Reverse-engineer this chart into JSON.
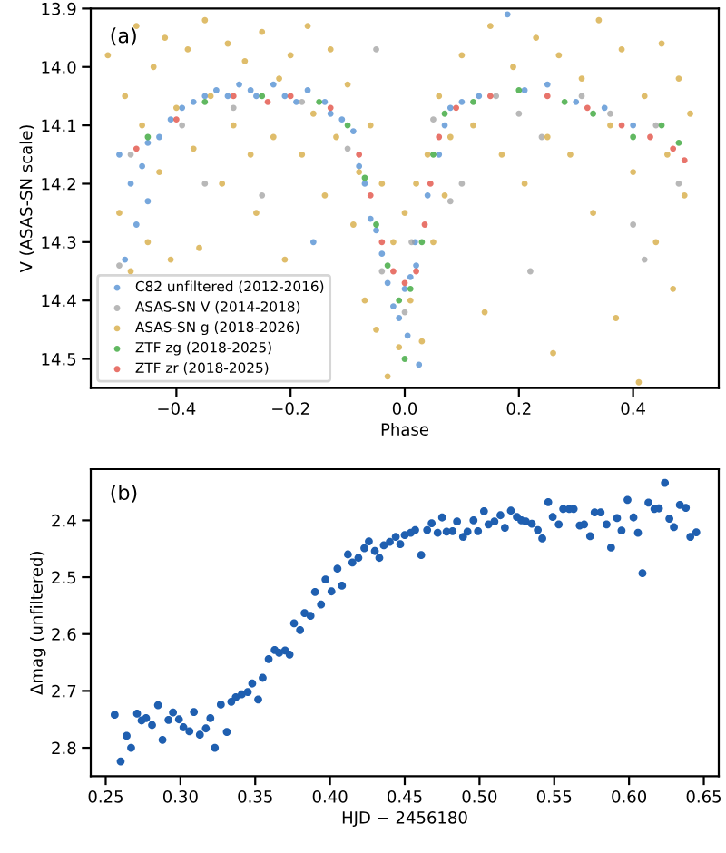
{
  "chart_data": [
    {
      "type": "scatter",
      "xlabel": "Phase",
      "ylabel": "V (ASAS-SN scale)",
      "annotations": [
        "(a)"
      ],
      "xlim": [
        -0.55,
        0.55
      ],
      "ylim": [
        14.55,
        13.9
      ],
      "xticks": [
        {
          "value": -0.4,
          "label": "−0.4"
        },
        {
          "value": -0.2,
          "label": "−0.2"
        },
        {
          "value": 0.0,
          "label": "0.0"
        },
        0.2,
        0.4
      ],
      "yticks": [
        13.9,
        {
          "value": 14.0,
          "label": "14.0"
        },
        14.1,
        14.2,
        14.3,
        14.4,
        14.5
      ],
      "grid": false,
      "legend": "bottom left",
      "marker": "circle",
      "series": [
        {
          "name": "C82 unfiltered (2012-2016)",
          "color": "#4a8ad0",
          "x": [
            -0.5,
            -0.49,
            -0.48,
            -0.47,
            -0.46,
            -0.45,
            -0.43,
            -0.41,
            -0.39,
            -0.37,
            -0.35,
            -0.33,
            -0.31,
            -0.29,
            -0.27,
            -0.26,
            -0.23,
            -0.21,
            -0.19,
            -0.17,
            -0.14,
            -0.13,
            -0.11,
            -0.09,
            -0.08,
            -0.07,
            -0.06,
            -0.05,
            -0.04,
            -0.03,
            -0.02,
            -0.01,
            0.0,
            0.005,
            0.01,
            0.02,
            0.025,
            0.018,
            0.04,
            0.06,
            0.07,
            0.08,
            0.1,
            0.13,
            -0.16,
            0.21,
            0.25,
            0.3,
            0.35,
            0.4,
            0.18,
            -0.45
          ],
          "values": [
            14.15,
            14.33,
            14.2,
            14.27,
            14.17,
            14.13,
            14.12,
            14.09,
            14.07,
            14.06,
            14.05,
            14.04,
            14.05,
            14.03,
            14.04,
            14.05,
            14.03,
            14.05,
            14.06,
            14.04,
            14.06,
            14.08,
            14.09,
            14.11,
            14.17,
            14.2,
            14.26,
            14.28,
            14.32,
            14.37,
            14.41,
            14.43,
            14.38,
            14.46,
            14.36,
            14.34,
            14.51,
            14.3,
            14.22,
            14.15,
            14.1,
            14.07,
            14.06,
            14.05,
            14.3,
            14.04,
            14.03,
            14.06,
            14.07,
            14.1,
            13.91,
            14.23
          ]
        },
        {
          "name": "ASAS-SN V (2014-2018)",
          "color": "#a0a0a0",
          "x": [
            -0.5,
            -0.48,
            -0.39,
            -0.3,
            -0.25,
            -0.18,
            -0.1,
            -0.05,
            -0.04,
            0.0,
            0.012,
            0.05,
            0.1,
            0.16,
            0.2,
            0.24,
            0.31,
            0.36,
            0.4,
            0.42,
            0.44,
            0.48,
            0.22,
            -0.35,
            0.08
          ],
          "values": [
            14.34,
            14.15,
            14.1,
            14.07,
            14.22,
            14.06,
            14.14,
            13.97,
            14.35,
            14.42,
            14.3,
            14.09,
            14.2,
            14.05,
            14.08,
            14.12,
            14.05,
            14.08,
            14.27,
            14.33,
            14.1,
            14.2,
            14.35,
            14.2,
            14.23
          ]
        },
        {
          "name": "ASAS-SN g (2018-2026)",
          "color": "#d4a73a",
          "x": [
            -0.52,
            -0.5,
            -0.49,
            -0.48,
            -0.47,
            -0.46,
            -0.45,
            -0.44,
            -0.43,
            -0.42,
            -0.41,
            -0.4,
            -0.38,
            -0.37,
            -0.36,
            -0.35,
            -0.34,
            -0.32,
            -0.31,
            -0.3,
            -0.28,
            -0.27,
            -0.26,
            -0.25,
            -0.23,
            -0.22,
            -0.21,
            -0.2,
            -0.18,
            -0.17,
            -0.16,
            -0.14,
            -0.13,
            -0.12,
            -0.1,
            -0.09,
            -0.08,
            -0.07,
            -0.06,
            -0.05,
            -0.04,
            -0.03,
            -0.02,
            -0.01,
            0.0,
            0.01,
            0.02,
            0.03,
            0.04,
            0.05,
            0.06,
            0.07,
            0.08,
            0.1,
            0.12,
            0.14,
            0.15,
            0.17,
            0.19,
            0.21,
            0.23,
            0.25,
            0.26,
            0.27,
            0.29,
            0.31,
            0.33,
            0.34,
            0.36,
            0.37,
            0.38,
            0.4,
            0.41,
            0.42,
            0.44,
            0.45,
            0.46,
            0.47,
            0.48,
            0.49,
            0.5
          ],
          "values": [
            13.98,
            14.25,
            14.05,
            14.35,
            13.93,
            14.1,
            14.3,
            14.0,
            14.18,
            13.95,
            14.33,
            14.07,
            13.97,
            14.14,
            14.31,
            13.92,
            14.05,
            14.2,
            13.96,
            14.1,
            13.99,
            14.15,
            14.25,
            13.94,
            14.12,
            14.02,
            14.33,
            13.98,
            14.15,
            13.93,
            14.08,
            14.22,
            13.97,
            14.12,
            14.03,
            14.27,
            14.18,
            14.4,
            14.1,
            14.45,
            14.2,
            14.53,
            14.3,
            14.48,
            14.25,
            14.4,
            14.2,
            14.47,
            14.15,
            14.3,
            14.05,
            14.22,
            14.12,
            13.98,
            14.1,
            14.42,
            13.93,
            14.15,
            14.0,
            14.2,
            13.95,
            14.12,
            14.49,
            13.98,
            14.15,
            14.02,
            14.25,
            13.92,
            14.1,
            14.43,
            13.97,
            14.18,
            14.54,
            14.05,
            14.3,
            13.96,
            14.15,
            14.38,
            14.02,
            14.22,
            14.08
          ]
        },
        {
          "name": "ZTF zg (2018-2025)",
          "color": "#2ca02c",
          "x": [
            -0.45,
            -0.35,
            -0.25,
            -0.15,
            -0.1,
            -0.07,
            -0.05,
            -0.03,
            -0.01,
            0.0,
            0.01,
            0.03,
            0.05,
            0.07,
            0.12,
            0.2,
            0.28,
            0.33,
            0.4,
            0.45,
            0.48
          ],
          "values": [
            14.12,
            14.06,
            14.05,
            14.06,
            14.1,
            14.19,
            14.27,
            14.34,
            14.4,
            14.5,
            14.38,
            14.3,
            14.15,
            14.08,
            14.06,
            14.04,
            14.06,
            14.08,
            14.12,
            14.1,
            14.13
          ]
        },
        {
          "name": "ZTF zr (2018-2025)",
          "color": "#e0453a",
          "x": [
            -0.47,
            -0.4,
            -0.3,
            -0.24,
            -0.2,
            -0.13,
            -0.08,
            -0.06,
            -0.04,
            -0.02,
            0.0,
            0.02,
            0.035,
            0.045,
            0.06,
            0.09,
            0.15,
            0.25,
            0.32,
            0.38,
            0.43,
            0.47,
            0.49
          ],
          "values": [
            14.14,
            14.09,
            14.05,
            14.06,
            14.05,
            14.07,
            14.15,
            14.22,
            14.3,
            14.35,
            14.37,
            14.35,
            14.27,
            14.2,
            14.12,
            14.07,
            14.05,
            14.05,
            14.07,
            14.1,
            14.12,
            14.14,
            14.16
          ]
        }
      ]
    },
    {
      "type": "scatter",
      "xlabel": "HJD − 2456180",
      "ylabel": "Δmag (unfiltered)",
      "annotations": [
        "(b)"
      ],
      "xlim": [
        0.24,
        0.66
      ],
      "ylim": [
        2.85,
        2.31
      ],
      "xticks": [
        0.25,
        {
          "value": 0.3,
          "label": "0.30"
        },
        0.35,
        {
          "value": 0.4,
          "label": "0.40"
        },
        0.45,
        {
          "value": 0.5,
          "label": "0.50"
        },
        0.55,
        {
          "value": 0.6,
          "label": "0.60"
        },
        0.65
      ],
      "yticks": [
        2.4,
        2.5,
        2.6,
        2.7,
        2.8
      ],
      "grid": false,
      "marker": "circle",
      "series": [
        {
          "color": "#1f5fb0",
          "x": [
            0.256,
            0.26,
            0.264,
            0.267,
            0.271,
            0.274,
            0.277,
            0.281,
            0.285,
            0.288,
            0.292,
            0.295,
            0.299,
            0.302,
            0.306,
            0.309,
            0.313,
            0.317,
            0.32,
            0.323,
            0.327,
            0.331,
            0.334,
            0.337,
            0.341,
            0.345,
            0.348,
            0.352,
            0.355,
            0.359,
            0.363,
            0.366,
            0.37,
            0.373,
            0.376,
            0.38,
            0.383,
            0.387,
            0.39,
            0.394,
            0.397,
            0.401,
            0.405,
            0.408,
            0.412,
            0.415,
            0.419,
            0.423,
            0.426,
            0.43,
            0.433,
            0.436,
            0.44,
            0.444,
            0.447,
            0.45,
            0.454,
            0.457,
            0.461,
            0.465,
            0.468,
            0.472,
            0.475,
            0.478,
            0.482,
            0.485,
            0.489,
            0.492,
            0.496,
            0.499,
            0.503,
            0.506,
            0.51,
            0.514,
            0.517,
            0.521,
            0.525,
            0.528,
            0.531,
            0.535,
            0.539,
            0.542,
            0.546,
            0.549,
            0.553,
            0.556,
            0.56,
            0.563,
            0.567,
            0.57,
            0.574,
            0.577,
            0.581,
            0.585,
            0.588,
            0.592,
            0.595,
            0.599,
            0.603,
            0.606,
            0.609,
            0.613,
            0.617,
            0.62,
            0.624,
            0.627,
            0.63,
            0.634,
            0.638,
            0.641,
            0.645
          ],
          "values": [
            2.742,
            2.824,
            2.779,
            2.8,
            2.74,
            2.752,
            2.748,
            2.76,
            2.725,
            2.786,
            2.751,
            2.738,
            2.75,
            2.764,
            2.771,
            2.737,
            2.777,
            2.766,
            2.748,
            2.8,
            2.724,
            2.772,
            2.719,
            2.711,
            2.706,
            2.702,
            2.687,
            2.715,
            2.677,
            2.644,
            2.628,
            2.633,
            2.629,
            2.636,
            2.581,
            2.593,
            2.563,
            2.568,
            2.526,
            2.548,
            2.504,
            2.525,
            2.485,
            2.515,
            2.46,
            2.474,
            2.466,
            2.449,
            2.437,
            2.454,
            2.466,
            2.444,
            2.438,
            2.429,
            2.442,
            2.426,
            2.422,
            2.417,
            2.461,
            2.417,
            2.405,
            2.422,
            2.395,
            2.42,
            2.419,
            2.402,
            2.429,
            2.42,
            2.4,
            2.419,
            2.384,
            2.407,
            2.402,
            2.391,
            2.413,
            2.383,
            2.394,
            2.4,
            2.402,
            2.406,
            2.417,
            2.432,
            2.368,
            2.394,
            2.407,
            2.38,
            2.38,
            2.38,
            2.409,
            2.407,
            2.428,
            2.386,
            2.386,
            2.407,
            2.448,
            2.396,
            2.418,
            2.364,
            2.395,
            2.422,
            2.493,
            2.369,
            2.38,
            2.379,
            2.334,
            2.397,
            2.412,
            2.373,
            2.378,
            2.429,
            2.421
          ]
        }
      ]
    }
  ]
}
